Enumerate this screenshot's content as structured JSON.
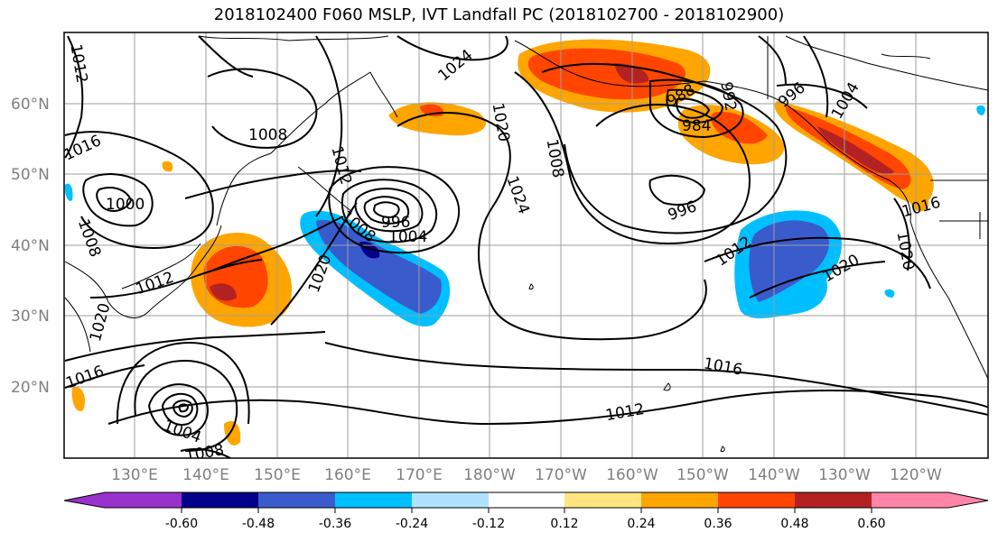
{
  "title": "2018102400 F060 MSLP, IVT Landfall PC (2018102700 - 2018102900)",
  "map": {
    "lat_labels": [
      "60°N",
      "50°N",
      "40°N",
      "30°N",
      "20°N"
    ],
    "lon_labels": [
      "130°E",
      "140°E",
      "150°E",
      "160°E",
      "170°E",
      "180°W",
      "170°W",
      "160°W",
      "150°W",
      "140°W",
      "130°W",
      "120°W"
    ],
    "isobar_labels": [
      "1012",
      "1024",
      "1008",
      "1016",
      "1012",
      "1000",
      "1008",
      "1012",
      "1020",
      "1008",
      "996",
      "1004",
      "1020",
      "1020",
      "1008",
      "1024",
      "988",
      "984",
      "992",
      "996",
      "1004",
      "996",
      "1012",
      "1020",
      "1016",
      "1020",
      "1016",
      "1016",
      "1004",
      "1008",
      "1012"
    ]
  },
  "colorbar": {
    "tick_labels": [
      "-0.60",
      "-0.48",
      "-0.36",
      "-0.24",
      "-0.12",
      "0.12",
      "0.24",
      "0.36",
      "0.48",
      "0.60"
    ],
    "colors": [
      "#9932cc",
      "#00008b",
      "#3a5bcc",
      "#00bfff",
      "#b0e2ff",
      "#ffffff",
      "#ffe680",
      "#ffa500",
      "#ff4500",
      "#b22222",
      "#ff85a8"
    ]
  }
}
